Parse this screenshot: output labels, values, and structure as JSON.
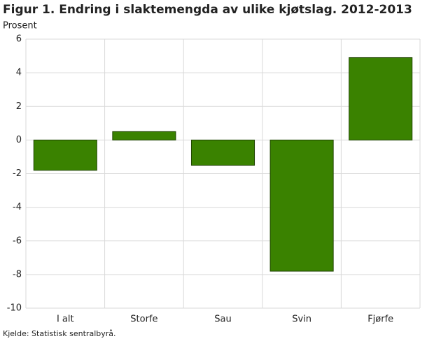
{
  "chart_data": {
    "type": "bar",
    "title": "Figur 1. Endring i slaktemengda av ulike kjøtslag. 2012-2013",
    "y_label": "Prosent",
    "source": "Kjelde: Statistisk sentralbyrå.",
    "categories": [
      "I alt",
      "Storfe",
      "Sau",
      "Svin",
      "Fjørfe"
    ],
    "values": [
      -1.8,
      0.5,
      -1.5,
      -7.8,
      4.9
    ],
    "color": "#3a8200",
    "ylim": [
      -10,
      6
    ],
    "yticks": [
      -10,
      -8,
      -6,
      -4,
      -2,
      0,
      2,
      4,
      6
    ],
    "grid": true
  }
}
